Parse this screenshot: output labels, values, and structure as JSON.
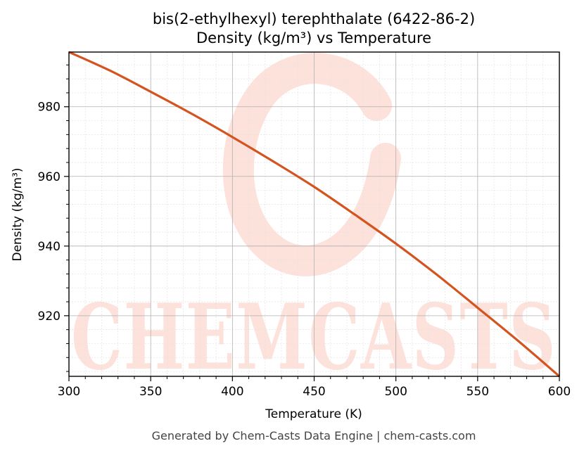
{
  "chart_data": {
    "type": "line",
    "title": "bis(2-ethylhexyl) terephthalate (6422-86-2)",
    "subtitle": "Density (kg/m³) vs Temperature",
    "xlabel": "Temperature (K)",
    "ylabel": "Density (kg/m³)",
    "xlim": [
      300,
      600
    ],
    "ylim": [
      902.6,
      995.7
    ],
    "xticks": [
      300,
      350,
      400,
      450,
      500,
      550,
      600
    ],
    "yticks": [
      920,
      940,
      960,
      980
    ],
    "grid": true,
    "series": [
      {
        "color": "#d4541f",
        "x": [
          300,
          325,
          350,
          375,
          400,
          425,
          450,
          475,
          500,
          525,
          550,
          575,
          600
        ],
        "y": [
          995.7,
          990.4,
          984.3,
          978.0,
          971.3,
          964.3,
          957.0,
          949.0,
          940.7,
          931.8,
          922.3,
          912.7,
          902.6
        ]
      }
    ]
  },
  "watermark": {
    "text": "CHEMCASTS",
    "color": "#fde1db"
  },
  "footer": "Generated by Chem-Casts Data Engine | chem-casts.com"
}
